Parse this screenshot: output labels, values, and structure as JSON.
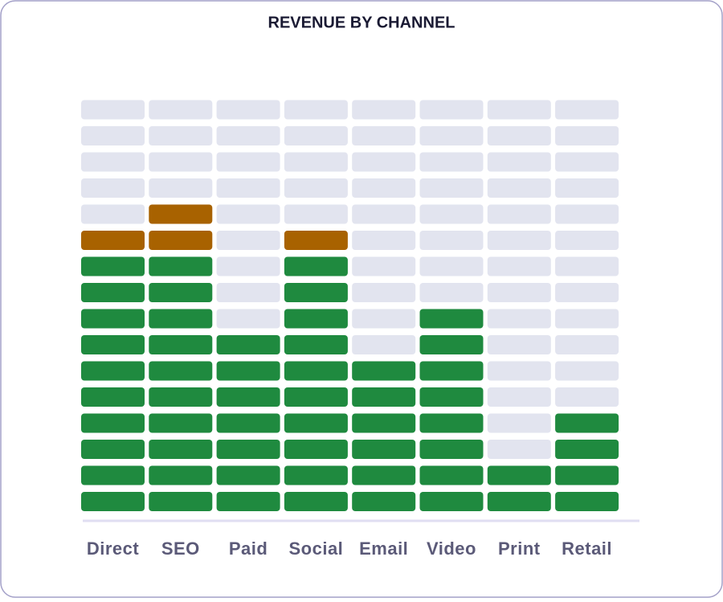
{
  "chart_data": {
    "type": "led-bar",
    "title": "REVENUE BY CHANNEL",
    "categories": [
      "Direct",
      "SEO",
      "Paid",
      "Social",
      "Email",
      "Video",
      "Print",
      "Retail"
    ],
    "values": [
      11,
      12,
      7,
      11,
      6,
      8,
      2,
      4
    ],
    "ylim": [
      0,
      16
    ],
    "threshold": 10,
    "color": "#1f8a3f",
    "high_color": "#a86200",
    "off_color": "#e2e4ef"
  }
}
